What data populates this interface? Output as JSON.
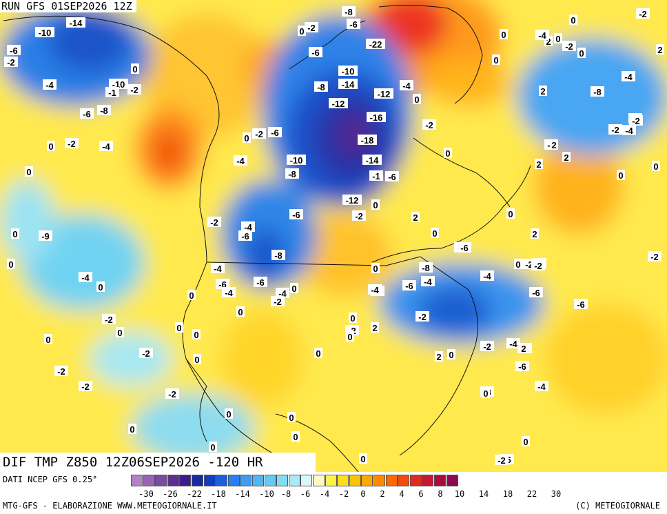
{
  "header": {
    "run_title": "RUN GFS 01SEP2026 12Z"
  },
  "field_title": "DIF TMP Z850 12Z06SEP2026 -120 HR",
  "footer": {
    "data_source": "DATI NCEP GFS 0.25°",
    "credit_left": "MTG-GFS - ELABORAZIONE WWW.METEOGIORNALE.IT",
    "credit_right": "(C) METEOGIORNALE"
  },
  "colorbar": {
    "colors": [
      "#b87fc9",
      "#9b63b8",
      "#7d4aa6",
      "#5e2e91",
      "#3a1c8c",
      "#1b2a9e",
      "#0f3fc0",
      "#1a5fe0",
      "#2a7ef0",
      "#3c9cf5",
      "#4fb6f6",
      "#62cbf3",
      "#80ddf2",
      "#a6ebf5",
      "#d8f7fa",
      "#fff9c4",
      "#fff04a",
      "#ffdf1a",
      "#ffc400",
      "#ffa600",
      "#ff8a00",
      "#ff6a00",
      "#f24a10",
      "#e02a20",
      "#c81830",
      "#a80c40",
      "#8c0a50"
    ],
    "ticks": [
      "-30",
      "-26",
      "-22",
      "-18",
      "-14",
      "-10",
      "-8",
      "-6",
      "-4",
      "-2",
      "0",
      "2",
      "4",
      "6",
      "8",
      "10",
      "14",
      "18",
      "22",
      "30"
    ]
  },
  "map_labels": [
    {
      "t": "-8"
    },
    {
      "t": "-6"
    },
    {
      "t": "-14"
    },
    {
      "t": "-10"
    },
    {
      "t": "-6"
    },
    {
      "t": "-2"
    },
    {
      "t": "-4"
    },
    {
      "t": "-10"
    },
    {
      "t": "-1"
    },
    {
      "t": "-2"
    },
    {
      "t": "-6"
    },
    {
      "t": "-8"
    },
    {
      "t": "0"
    },
    {
      "t": "0"
    },
    {
      "t": "-2"
    },
    {
      "t": "-4"
    },
    {
      "t": "0"
    },
    {
      "t": "0"
    },
    {
      "t": "-9"
    },
    {
      "t": "0"
    },
    {
      "t": "0"
    },
    {
      "t": "-4"
    },
    {
      "t": "0"
    },
    {
      "t": "-2"
    },
    {
      "t": "0"
    },
    {
      "t": "0"
    },
    {
      "t": "-2"
    },
    {
      "t": "-2"
    },
    {
      "t": "0"
    },
    {
      "t": "-2"
    },
    {
      "t": "-2"
    },
    {
      "t": "0"
    },
    {
      "t": "0"
    },
    {
      "t": "0"
    },
    {
      "t": "-2"
    },
    {
      "t": "-6"
    },
    {
      "t": "-22"
    },
    {
      "t": "-10"
    },
    {
      "t": "-14"
    },
    {
      "t": "-8"
    },
    {
      "t": "-12"
    },
    {
      "t": "-4"
    },
    {
      "t": "-12"
    },
    {
      "t": "-16"
    },
    {
      "t": "-18"
    },
    {
      "t": "-14"
    },
    {
      "t": "-10"
    },
    {
      "t": "-8"
    },
    {
      "t": "-1"
    },
    {
      "t": "-6"
    },
    {
      "t": "-12"
    },
    {
      "t": "-2"
    },
    {
      "t": "-6"
    },
    {
      "t": "-4"
    },
    {
      "t": "-2"
    },
    {
      "t": "-6"
    },
    {
      "t": "-4"
    },
    {
      "t": "-2"
    },
    {
      "t": "-6"
    },
    {
      "t": "-4"
    },
    {
      "t": "-8"
    },
    {
      "t": "-6"
    },
    {
      "t": "-4"
    },
    {
      "t": "-6"
    },
    {
      "t": "-4"
    },
    {
      "t": "-2"
    },
    {
      "t": "0"
    },
    {
      "t": "0"
    },
    {
      "t": "0"
    },
    {
      "t": "-2"
    },
    {
      "t": "0"
    },
    {
      "t": "-2"
    },
    {
      "t": "0"
    },
    {
      "t": "0"
    },
    {
      "t": "-2"
    },
    {
      "t": "0"
    },
    {
      "t": "0"
    },
    {
      "t": "0"
    },
    {
      "t": "0"
    },
    {
      "t": "0"
    },
    {
      "t": "-4"
    },
    {
      "t": "-2"
    },
    {
      "t": "-8"
    },
    {
      "t": "0"
    },
    {
      "t": "-2"
    },
    {
      "t": "0"
    },
    {
      "t": "-4"
    },
    {
      "t": "-2"
    },
    {
      "t": "2"
    },
    {
      "t": "2"
    },
    {
      "t": "0"
    },
    {
      "t": "-2"
    },
    {
      "t": "-4"
    },
    {
      "t": "-6"
    },
    {
      "t": "-8"
    },
    {
      "t": "-6"
    },
    {
      "t": "-6"
    },
    {
      "t": "-6"
    },
    {
      "t": "-8"
    },
    {
      "t": "-4"
    },
    {
      "t": "-2"
    },
    {
      "t": "-4"
    },
    {
      "t": "0"
    },
    {
      "t": "2"
    },
    {
      "t": "2"
    },
    {
      "t": "0"
    },
    {
      "t": "2"
    },
    {
      "t": "2"
    },
    {
      "t": "2"
    },
    {
      "t": "0"
    },
    {
      "t": "2"
    },
    {
      "t": "-2"
    },
    {
      "t": "0"
    },
    {
      "t": "2"
    },
    {
      "t": "2"
    },
    {
      "t": "2"
    },
    {
      "t": "-2"
    },
    {
      "t": "-4"
    },
    {
      "t": "-6"
    },
    {
      "t": "-8"
    },
    {
      "t": "-4"
    },
    {
      "t": "-6"
    },
    {
      "t": "-4"
    },
    {
      "t": "0"
    },
    {
      "t": "-6"
    },
    {
      "t": "-2"
    },
    {
      "t": "0"
    },
    {
      "t": "-2"
    },
    {
      "t": "0"
    },
    {
      "t": "0"
    },
    {
      "t": "0"
    },
    {
      "t": "0"
    },
    {
      "t": "0"
    },
    {
      "t": "0"
    },
    {
      "t": "0"
    },
    {
      "t": "-4"
    },
    {
      "t": "0"
    },
    {
      "t": "-2"
    },
    {
      "t": "2"
    },
    {
      "t": "0"
    },
    {
      "t": "-2"
    },
    {
      "t": "-2"
    },
    {
      "t": "-2"
    },
    {
      "t": "0"
    },
    {
      "t": "0"
    },
    {
      "t": "0"
    },
    {
      "t": "0"
    },
    {
      "t": "-2"
    },
    {
      "t": "0"
    },
    {
      "t": "0"
    },
    {
      "t": "0"
    },
    {
      "t": "0"
    }
  ]
}
